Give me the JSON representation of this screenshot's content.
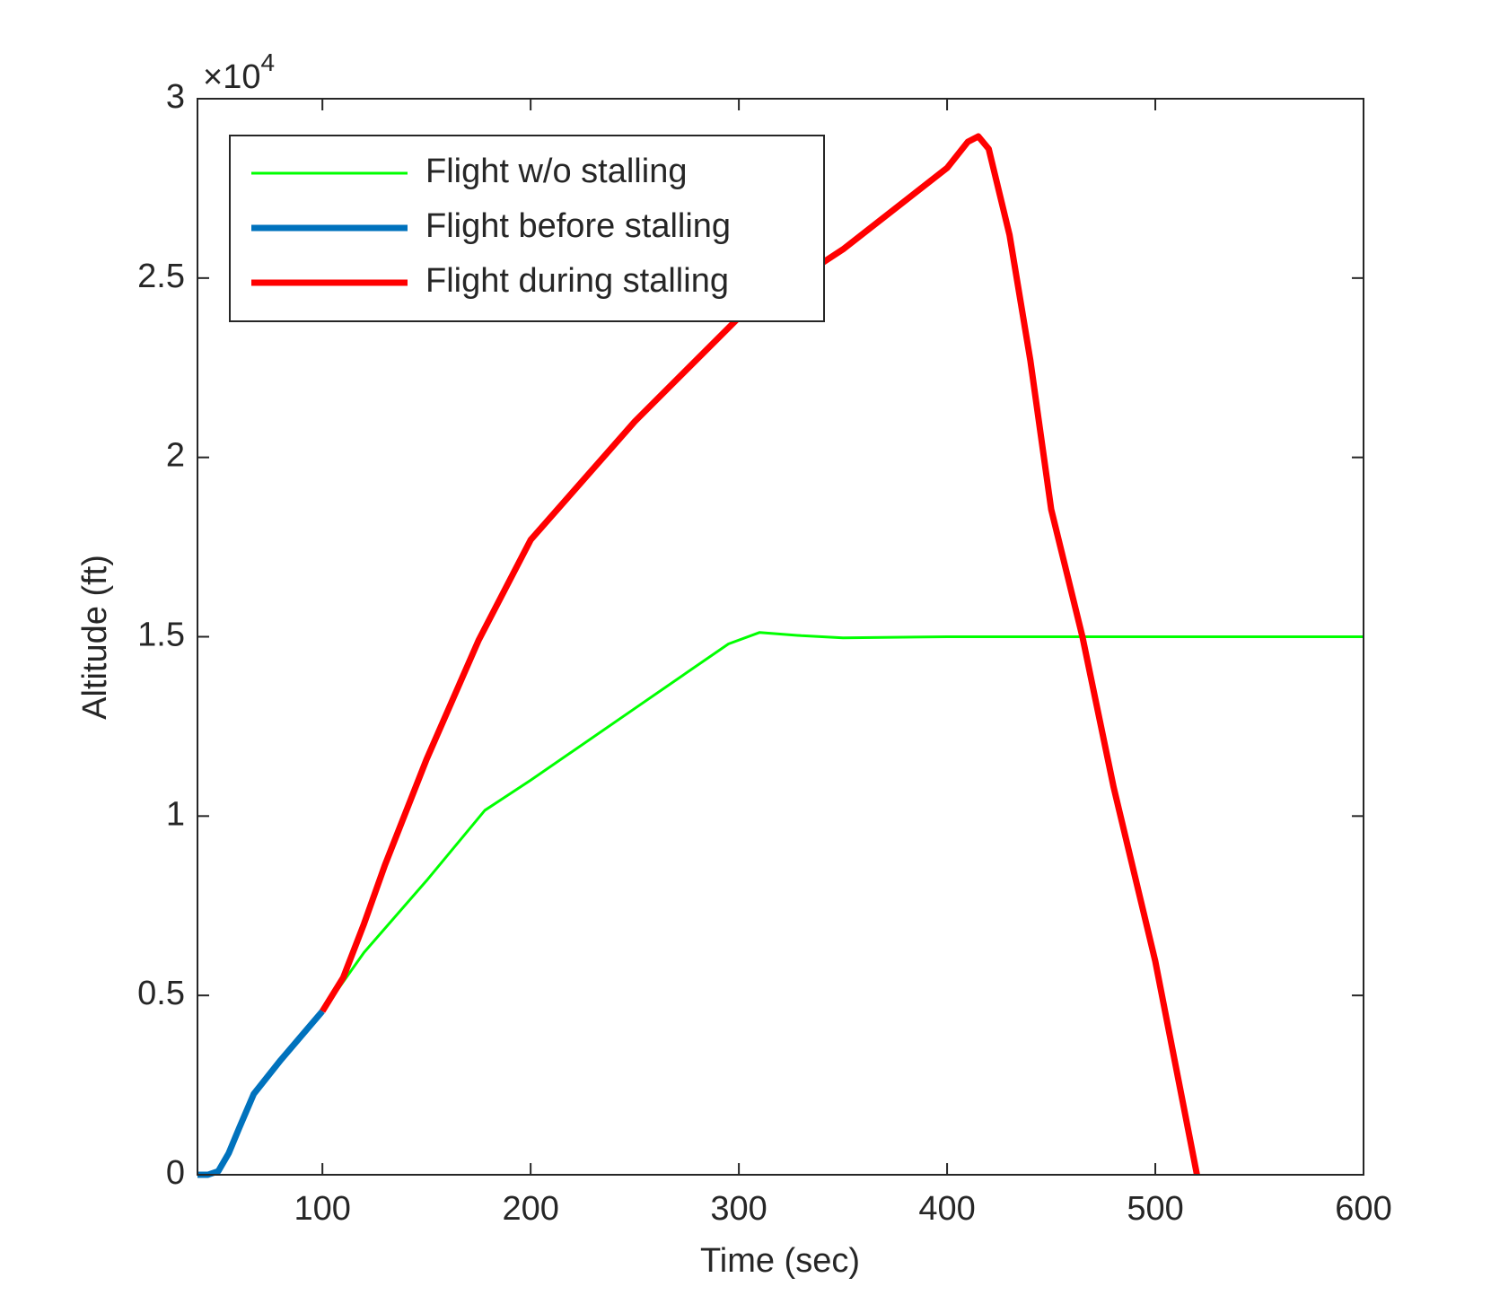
{
  "chart_data": {
    "type": "line",
    "xlabel": "Time (sec)",
    "ylabel": "Altitude (ft)",
    "y_multiplier": {
      "base": "×10",
      "exponent": "4"
    },
    "xlim": [
      40,
      600
    ],
    "xticks": [
      100,
      200,
      300,
      400,
      500,
      600
    ],
    "ylim": [
      0,
      30000
    ],
    "yticks": [
      0,
      {
        "value": 5000,
        "label": "0.5"
      },
      {
        "value": 10000,
        "label": "1"
      },
      {
        "value": 15000,
        "label": "1.5"
      },
      {
        "value": 20000,
        "label": "2"
      },
      {
        "value": 25000,
        "label": "2.5"
      },
      {
        "value": 30000,
        "label": "3"
      }
    ],
    "grid": false,
    "legend": "northwest",
    "series": [
      {
        "name": "Flight w/o stalling",
        "color": "#00ff00",
        "line_width": 3,
        "x": [
          40,
          45,
          50,
          55,
          60,
          67,
          80,
          100,
          120,
          150,
          178,
          200,
          250,
          295,
          310,
          330,
          350,
          400,
          600
        ],
        "values": [
          0,
          0,
          100,
          600,
          1300,
          2250,
          3200,
          4560,
          6200,
          8200,
          10160,
          11000,
          13000,
          14800,
          15120,
          15030,
          14970,
          15000,
          15000
        ]
      },
      {
        "name": "Flight before stalling",
        "color": "#0072bd",
        "line_width": 7,
        "x": [
          40,
          45,
          50,
          55,
          60,
          67,
          80,
          100
        ],
        "values": [
          0,
          0,
          100,
          600,
          1300,
          2250,
          3200,
          4560
        ]
      },
      {
        "name": "Flight during stalling",
        "color": "#ff0000",
        "line_width": 7,
        "x": [
          100,
          110,
          120,
          130,
          150,
          175,
          200,
          250,
          300,
          350,
          400,
          410,
          415,
          420,
          430,
          440,
          450,
          465,
          480,
          500,
          520
        ],
        "values": [
          4560,
          5500,
          7000,
          8630,
          11580,
          14900,
          17700,
          21000,
          23900,
          25800,
          28070,
          28800,
          28950,
          28600,
          26200,
          22700,
          18550,
          15000,
          10800,
          5950,
          0
        ]
      }
    ]
  }
}
